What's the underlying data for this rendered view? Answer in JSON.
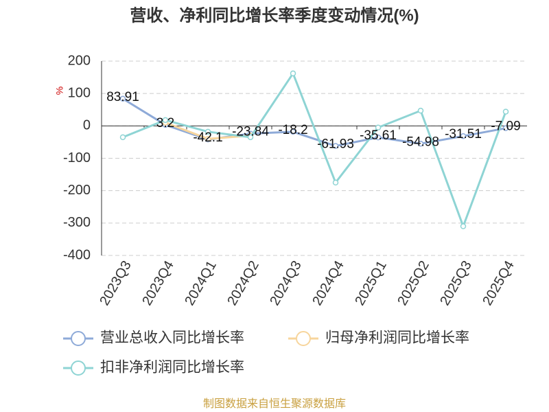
{
  "chart_data": {
    "type": "line",
    "title": "营收、净利同比增长率季度变动情况(%)",
    "y_unit": "%",
    "categories": [
      "2023Q3",
      "2023Q4",
      "2024Q1",
      "2024Q2",
      "2024Q3",
      "2024Q4",
      "2025Q1",
      "2025Q2",
      "2025Q3",
      "2025Q4"
    ],
    "series": [
      {
        "name": "营业总收入同比增长率",
        "color": "#8eaad8",
        "values": [
          83.91,
          3.2,
          -42.1,
          -23.84,
          -18.2,
          -61.93,
          -35.61,
          -54.98,
          -31.51,
          -7.09
        ],
        "labels": true
      },
      {
        "name": "归母净利润同比增长率",
        "color": "#f7d59c",
        "values": [
          null,
          10,
          -40,
          -30,
          null,
          null,
          null,
          null,
          null,
          null
        ],
        "labels": false
      },
      {
        "name": "扣非净利润同比增长率",
        "color": "#8ed4d4",
        "values": [
          -35,
          18,
          -18,
          -35,
          162,
          -175,
          -5,
          47,
          -310,
          44
        ],
        "labels": false
      }
    ],
    "ylim": [
      -400,
      200
    ],
    "yticks": [
      -400,
      -300,
      -200,
      -100,
      0,
      100,
      200
    ],
    "grid": true,
    "source": "制图数据来自恒生聚源数据库"
  }
}
